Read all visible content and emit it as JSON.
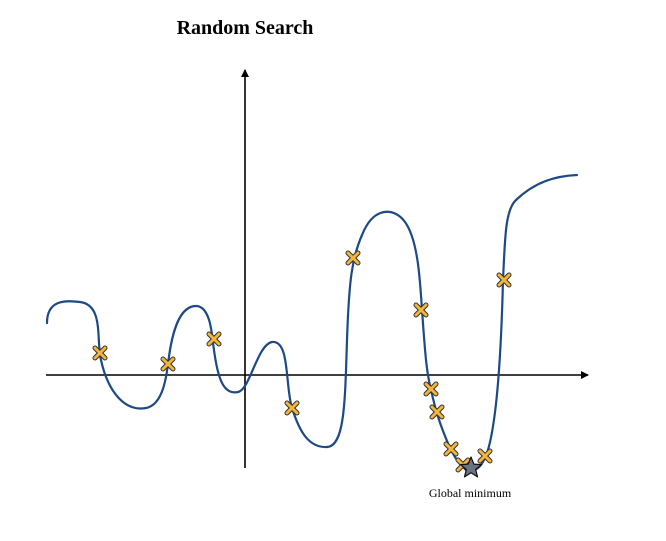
{
  "title": "Random Search",
  "annotation": "Global minimum",
  "colors": {
    "curve": "#1d4a85",
    "marker_fill": "#f3b53a",
    "marker_stroke": "#333333",
    "star_fill": "#6b7280",
    "axis": "#000000"
  },
  "icons": {
    "sample": "x-marker-icon",
    "minimum": "star-icon",
    "axis_arrow": "arrow-head-icon"
  }
}
